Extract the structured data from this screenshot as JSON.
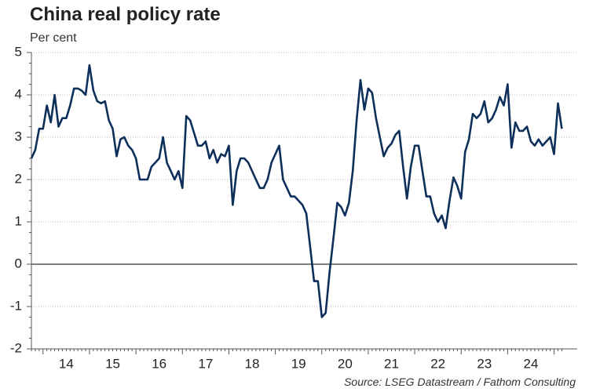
{
  "chart_data": {
    "type": "line",
    "title": "China real policy rate",
    "subtitle": "Per cent",
    "source": "Source: LSEG Datastream / Fathom Consulting",
    "categories": [
      null,
      null,
      null,
      null,
      null,
      null,
      null,
      null,
      null,
      "14",
      null,
      null,
      null,
      null,
      null,
      null,
      null,
      null,
      null,
      null,
      null,
      "15",
      null,
      null,
      null,
      null,
      null,
      null,
      null,
      null,
      null,
      null,
      null,
      "16",
      null,
      null,
      null,
      null,
      null,
      null,
      null,
      null,
      null,
      null,
      null,
      "17",
      null,
      null,
      null,
      null,
      null,
      null,
      null,
      null,
      null,
      null,
      null,
      "18",
      null,
      null,
      null,
      null,
      null,
      null,
      null,
      null,
      null,
      null,
      null,
      "19",
      null,
      null,
      null,
      null,
      null,
      null,
      null,
      null,
      null,
      null,
      null,
      "20",
      null,
      null,
      null,
      null,
      null,
      null,
      null,
      null,
      null,
      null,
      null,
      "21",
      null,
      null,
      null,
      null,
      null,
      null,
      null,
      null,
      null,
      null,
      null,
      "22",
      null,
      null,
      null,
      null,
      null,
      null,
      null,
      null,
      null,
      null,
      null,
      "23",
      null,
      null,
      null,
      null,
      null,
      null,
      null,
      null,
      null,
      null,
      null,
      "24",
      null,
      null,
      null,
      null,
      null,
      null,
      null,
      null
    ],
    "series": [
      {
        "color": "#0d2f5a",
        "values": [
          2.5,
          2.7,
          3.2,
          3.2,
          3.75,
          3.35,
          4.0,
          3.25,
          3.45,
          3.45,
          3.75,
          4.15,
          4.15,
          4.1,
          4.0,
          4.7,
          4.1,
          3.85,
          3.8,
          3.85,
          3.4,
          3.2,
          2.55,
          2.95,
          3.0,
          2.8,
          2.7,
          2.5,
          2.0,
          2.0,
          2.0,
          2.3,
          2.4,
          2.5,
          3.0,
          2.4,
          2.2,
          2.0,
          2.2,
          1.8,
          3.5,
          3.4,
          3.1,
          2.8,
          2.8,
          2.9,
          2.5,
          2.7,
          2.4,
          2.6,
          2.55,
          2.8,
          1.4,
          2.2,
          2.5,
          2.5,
          2.4,
          2.2,
          2.0,
          1.8,
          1.8,
          2.0,
          2.4,
          2.6,
          2.8,
          2.0,
          1.8,
          1.6,
          1.6,
          1.5,
          1.4,
          1.2,
          0.4,
          -0.4,
          -0.4,
          -1.25,
          -1.15,
          -0.2,
          0.6,
          1.45,
          1.35,
          1.15,
          1.45,
          2.2,
          3.4,
          4.35,
          3.65,
          4.15,
          4.05,
          3.45,
          3.0,
          2.55,
          2.75,
          2.85,
          3.05,
          3.15,
          2.3,
          1.55,
          2.3,
          2.8,
          2.8,
          2.2,
          1.6,
          1.6,
          1.2,
          1.0,
          1.15,
          0.85,
          1.5,
          2.05,
          1.85,
          1.55,
          2.65,
          2.95,
          3.55,
          3.45,
          3.55,
          3.85,
          3.35,
          3.45,
          3.65,
          3.95,
          3.75,
          4.25,
          2.75,
          3.35,
          3.15,
          3.15,
          3.25,
          2.9,
          2.8,
          2.95,
          2.8,
          2.9,
          3.0,
          2.6,
          3.8,
          3.2
        ]
      }
    ],
    "ylim": [
      -2,
      5
    ],
    "yticks": [
      -2,
      -1,
      0,
      1,
      2,
      3,
      4,
      5
    ],
    "grid": true
  }
}
